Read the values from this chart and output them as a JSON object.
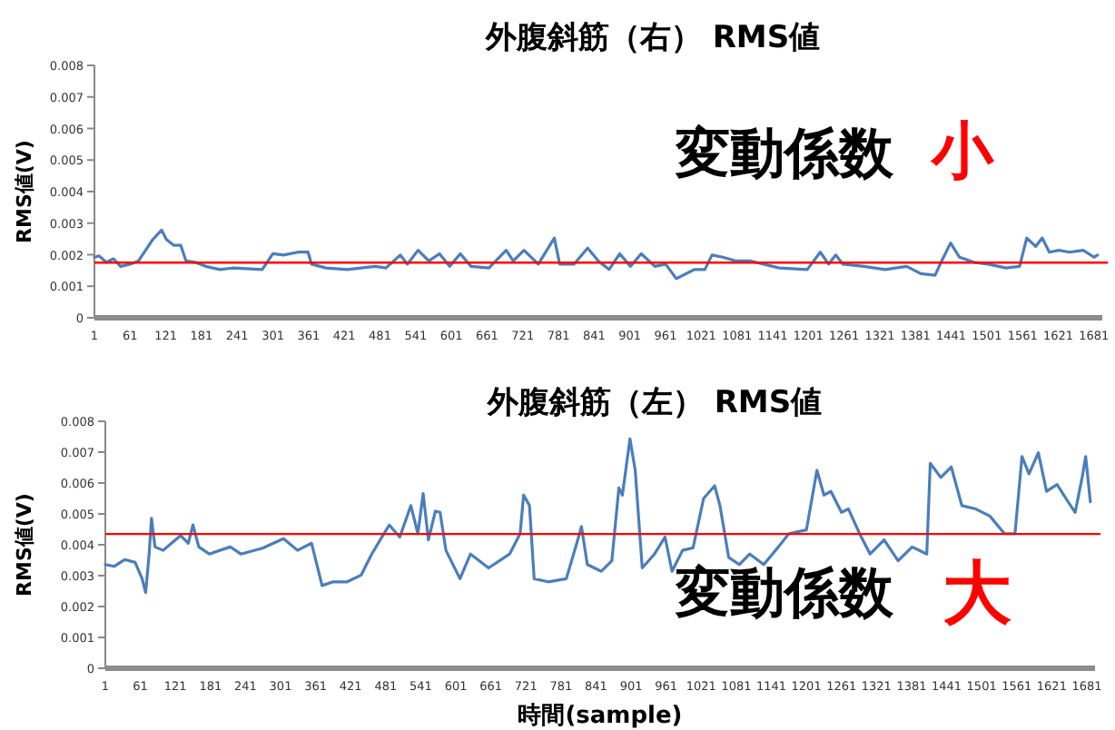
{
  "chart_data": [
    {
      "type": "line",
      "title": "外腹斜筋（右） RMS値",
      "ylabel": "RMS値(V)",
      "xlim": [
        1,
        1695
      ],
      "xticks": [
        1,
        61,
        121,
        181,
        241,
        301,
        361,
        421,
        481,
        541,
        601,
        661,
        721,
        781,
        841,
        901,
        961,
        1021,
        1081,
        1141,
        1201,
        1261,
        1321,
        1381,
        1441,
        1501,
        1561,
        1621,
        1681
      ],
      "ylim": [
        0,
        0.008
      ],
      "yticks": [
        0,
        0.001,
        0.002,
        0.003,
        0.004,
        0.005,
        0.006,
        0.007,
        0.008
      ],
      "x": [
        1,
        9,
        21,
        33,
        45,
        61,
        75,
        87,
        99,
        114,
        122,
        134,
        146,
        155,
        170,
        188,
        212,
        235,
        283,
        301,
        319,
        343,
        360,
        366,
        390,
        426,
        473,
        491,
        515,
        527,
        545,
        563,
        581,
        598,
        616,
        634,
        664,
        693,
        705,
        723,
        747,
        774,
        783,
        807,
        830,
        848,
        866,
        884,
        902,
        920,
        943,
        961,
        979,
        1009,
        1027,
        1039,
        1057,
        1080,
        1104,
        1152,
        1199,
        1221,
        1235,
        1247,
        1259,
        1294,
        1330,
        1366,
        1390,
        1414,
        1425,
        1440,
        1455,
        1479,
        1503,
        1533,
        1556,
        1568,
        1583,
        1594,
        1606,
        1622,
        1640,
        1663,
        1681,
        1687
      ],
      "series": [
        {
          "color": "#4a7ebb",
          "values": [
            0.00192,
            0.00196,
            0.00176,
            0.00187,
            0.00163,
            0.0017,
            0.0018,
            0.00214,
            0.00248,
            0.00278,
            0.00248,
            0.0023,
            0.0023,
            0.0018,
            0.00176,
            0.00163,
            0.00153,
            0.00158,
            0.00153,
            0.00203,
            0.00199,
            0.00208,
            0.00208,
            0.0017,
            0.00158,
            0.00153,
            0.00163,
            0.00158,
            0.00199,
            0.0017,
            0.00214,
            0.0018,
            0.00203,
            0.00163,
            0.00203,
            0.00163,
            0.00158,
            0.00214,
            0.0018,
            0.00214,
            0.0017,
            0.00253,
            0.0017,
            0.0017,
            0.00221,
            0.0018,
            0.00153,
            0.00203,
            0.00163,
            0.00203,
            0.00163,
            0.0017,
            0.00124,
            0.00153,
            0.00153,
            0.00199,
            0.00192,
            0.0018,
            0.0018,
            0.00158,
            0.00153,
            0.00208,
            0.0017,
            0.00199,
            0.0017,
            0.00163,
            0.00153,
            0.00163,
            0.0014,
            0.00135,
            0.0018,
            0.00237,
            0.00192,
            0.00176,
            0.0017,
            0.00158,
            0.00163,
            0.00253,
            0.00226,
            0.00253,
            0.00208,
            0.00214,
            0.00208,
            0.00214,
            0.00192,
            0.00199
          ]
        }
      ],
      "ref_lines": [
        {
          "axis": "y",
          "value": 0.00175,
          "color": "#ff0000"
        }
      ],
      "annotations": [
        "変動係数",
        "小"
      ]
    },
    {
      "type": "line",
      "title": "外腹斜筋（左） RMS値",
      "ylabel": "RMS値(V)",
      "xlabel": "時間(sample)",
      "xlim": [
        1,
        1695
      ],
      "xticks": [
        1,
        61,
        121,
        181,
        241,
        301,
        361,
        421,
        481,
        541,
        601,
        661,
        721,
        781,
        841,
        901,
        961,
        1021,
        1081,
        1141,
        1201,
        1261,
        1321,
        1381,
        1441,
        1501,
        1561,
        1621,
        1681
      ],
      "ylim": [
        0,
        0.008
      ],
      "yticks": [
        0,
        0.001,
        0.002,
        0.003,
        0.004,
        0.005,
        0.006,
        0.007,
        0.008
      ],
      "x": [
        1,
        16,
        34,
        52,
        64,
        70,
        76,
        80,
        86,
        100,
        118,
        130,
        143,
        151,
        161,
        179,
        197,
        215,
        233,
        270,
        306,
        330,
        354,
        372,
        391,
        415,
        439,
        457,
        475,
        487,
        505,
        524,
        536,
        545,
        554,
        566,
        574,
        584,
        608,
        626,
        657,
        693,
        711,
        717,
        727,
        735,
        759,
        790,
        808,
        816,
        826,
        850,
        868,
        880,
        886,
        899,
        908,
        920,
        941,
        959,
        971,
        989,
        1007,
        1025,
        1044,
        1053,
        1068,
        1086,
        1104,
        1128,
        1153,
        1171,
        1201,
        1219,
        1231,
        1243,
        1261,
        1273,
        1292,
        1310,
        1334,
        1358,
        1382,
        1407,
        1413,
        1431,
        1449,
        1467,
        1491,
        1515,
        1540,
        1558,
        1570,
        1582,
        1598,
        1612,
        1630,
        1649,
        1661,
        1673,
        1679,
        1687
      ],
      "series": [
        {
          "color": "#4a7ebb",
          "values": [
            0.00336,
            0.0033,
            0.00352,
            0.00343,
            0.0029,
            0.00245,
            0.0037,
            0.00486,
            0.00393,
            0.00382,
            0.00411,
            0.0043,
            0.00405,
            0.00464,
            0.00393,
            0.0037,
            0.00382,
            0.00393,
            0.0037,
            0.00389,
            0.0042,
            0.00382,
            0.00405,
            0.00268,
            0.0028,
            0.0028,
            0.00302,
            0.0037,
            0.00427,
            0.00464,
            0.00425,
            0.00527,
            0.00436,
            0.00566,
            0.00416,
            0.00509,
            0.00505,
            0.00382,
            0.0029,
            0.0037,
            0.00325,
            0.0037,
            0.00436,
            0.00561,
            0.00527,
            0.0029,
            0.0028,
            0.0029,
            0.00405,
            0.00459,
            0.00336,
            0.00314,
            0.00348,
            0.00584,
            0.00561,
            0.00743,
            0.00641,
            0.00325,
            0.0037,
            0.00425,
            0.00314,
            0.00382,
            0.0039,
            0.0055,
            0.00591,
            0.00527,
            0.00359,
            0.00336,
            0.0037,
            0.00336,
            0.00393,
            0.00436,
            0.00448,
            0.00641,
            0.00561,
            0.00573,
            0.00505,
            0.00516,
            0.00436,
            0.0037,
            0.00416,
            0.00348,
            0.00393,
            0.0037,
            0.00664,
            0.00618,
            0.00652,
            0.00527,
            0.00516,
            0.00493,
            0.00436,
            0.00436,
            0.00686,
            0.0063,
            0.00698,
            0.00573,
            0.00595,
            0.00539,
            0.00505,
            0.00618,
            0.00686,
            0.00539
          ]
        }
      ],
      "ref_lines": [
        {
          "axis": "y",
          "value": 0.00435,
          "color": "#ff0000"
        }
      ],
      "annotations": [
        "変動係数",
        "大"
      ]
    }
  ]
}
